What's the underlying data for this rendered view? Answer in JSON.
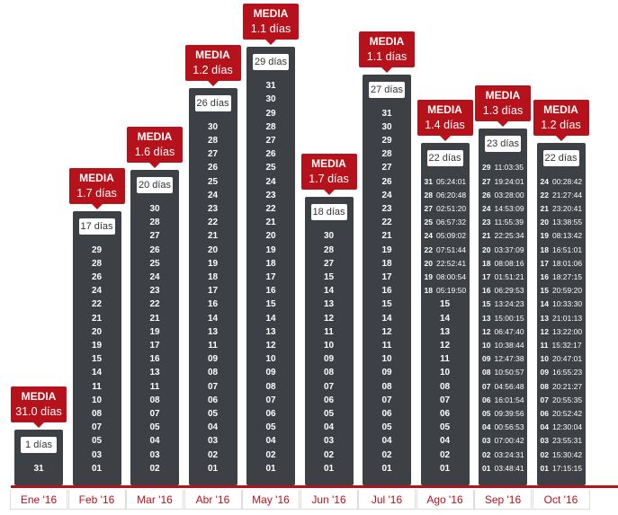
{
  "chart_data": {
    "type": "bar",
    "media_label": "MEDIA",
    "months": [
      {
        "label": "Ene '16",
        "media": "31.0 días",
        "count_label": "1 días",
        "count": 1,
        "entries": [
          {
            "day": "31"
          }
        ]
      },
      {
        "label": "Feb '16",
        "media": "1.7 días",
        "count_label": "17 días",
        "count": 17,
        "entries": [
          {
            "day": "29"
          },
          {
            "day": "28"
          },
          {
            "day": "26"
          },
          {
            "day": "24"
          },
          {
            "day": "22"
          },
          {
            "day": "21"
          },
          {
            "day": "20"
          },
          {
            "day": "19"
          },
          {
            "day": "15"
          },
          {
            "day": "14"
          },
          {
            "day": "11"
          },
          {
            "day": "10"
          },
          {
            "day": "08"
          },
          {
            "day": "07"
          },
          {
            "day": "05"
          },
          {
            "day": "03"
          },
          {
            "day": "01"
          }
        ]
      },
      {
        "label": "Mar '16",
        "media": "1.6 días",
        "count_label": "20 días",
        "count": 20,
        "entries": [
          {
            "day": "30"
          },
          {
            "day": "28"
          },
          {
            "day": "27"
          },
          {
            "day": "26"
          },
          {
            "day": "25"
          },
          {
            "day": "24"
          },
          {
            "day": "23"
          },
          {
            "day": "22"
          },
          {
            "day": "21"
          },
          {
            "day": "19"
          },
          {
            "day": "17"
          },
          {
            "day": "16"
          },
          {
            "day": "13"
          },
          {
            "day": "11"
          },
          {
            "day": "08"
          },
          {
            "day": "07"
          },
          {
            "day": "05"
          },
          {
            "day": "04"
          },
          {
            "day": "03"
          },
          {
            "day": "02"
          }
        ]
      },
      {
        "label": "Abr '16",
        "media": "1.2 días",
        "count_label": "26 días",
        "count": 26,
        "entries": [
          {
            "day": "30"
          },
          {
            "day": "28"
          },
          {
            "day": "27"
          },
          {
            "day": "26"
          },
          {
            "day": "25"
          },
          {
            "day": "24"
          },
          {
            "day": "23"
          },
          {
            "day": "22"
          },
          {
            "day": "21"
          },
          {
            "day": "20"
          },
          {
            "day": "19"
          },
          {
            "day": "18"
          },
          {
            "day": "17"
          },
          {
            "day": "16"
          },
          {
            "day": "14"
          },
          {
            "day": "13"
          },
          {
            "day": "11"
          },
          {
            "day": "09"
          },
          {
            "day": "08"
          },
          {
            "day": "07"
          },
          {
            "day": "06"
          },
          {
            "day": "05"
          },
          {
            "day": "04"
          },
          {
            "day": "03"
          },
          {
            "day": "02"
          },
          {
            "day": "01"
          }
        ]
      },
      {
        "label": "May '16",
        "media": "1.1 días",
        "count_label": "29 días",
        "count": 29,
        "entries": [
          {
            "day": "31"
          },
          {
            "day": "30"
          },
          {
            "day": "29"
          },
          {
            "day": "28"
          },
          {
            "day": "27"
          },
          {
            "day": "26"
          },
          {
            "day": "25"
          },
          {
            "day": "24"
          },
          {
            "day": "23"
          },
          {
            "day": "22"
          },
          {
            "day": "21"
          },
          {
            "day": "20"
          },
          {
            "day": "19"
          },
          {
            "day": "18"
          },
          {
            "day": "17"
          },
          {
            "day": "16"
          },
          {
            "day": "15"
          },
          {
            "day": "14"
          },
          {
            "day": "13"
          },
          {
            "day": "12"
          },
          {
            "day": "10"
          },
          {
            "day": "09"
          },
          {
            "day": "08"
          },
          {
            "day": "07"
          },
          {
            "day": "06"
          },
          {
            "day": "05"
          },
          {
            "day": "04"
          },
          {
            "day": "02"
          },
          {
            "day": "01"
          }
        ]
      },
      {
        "label": "Jun '16",
        "media": "1.7 días",
        "count_label": "18 días",
        "count": 18,
        "entries": [
          {
            "day": "30"
          },
          {
            "day": "28"
          },
          {
            "day": "27"
          },
          {
            "day": "15"
          },
          {
            "day": "14"
          },
          {
            "day": "13"
          },
          {
            "day": "12"
          },
          {
            "day": "11"
          },
          {
            "day": "10"
          },
          {
            "day": "09"
          },
          {
            "day": "08"
          },
          {
            "day": "07"
          },
          {
            "day": "06"
          },
          {
            "day": "05"
          },
          {
            "day": "04"
          },
          {
            "day": "03"
          },
          {
            "day": "02"
          },
          {
            "day": "01"
          }
        ]
      },
      {
        "label": "Jul '16",
        "media": "1.1 días",
        "count_label": "27 días",
        "count": 27,
        "entries": [
          {
            "day": "31"
          },
          {
            "day": "30"
          },
          {
            "day": "29"
          },
          {
            "day": "28"
          },
          {
            "day": "27"
          },
          {
            "day": "26"
          },
          {
            "day": "24"
          },
          {
            "day": "23"
          },
          {
            "day": "22"
          },
          {
            "day": "21"
          },
          {
            "day": "19"
          },
          {
            "day": "18"
          },
          {
            "day": "17"
          },
          {
            "day": "16"
          },
          {
            "day": "15"
          },
          {
            "day": "14"
          },
          {
            "day": "12"
          },
          {
            "day": "11"
          },
          {
            "day": "10"
          },
          {
            "day": "09"
          },
          {
            "day": "08"
          },
          {
            "day": "07"
          },
          {
            "day": "06"
          },
          {
            "day": "05"
          },
          {
            "day": "04"
          },
          {
            "day": "02"
          },
          {
            "day": "01"
          }
        ]
      },
      {
        "label": "Ago '16",
        "media": "1.4 días",
        "count_label": "22 días",
        "count": 22,
        "entries": [
          {
            "day": "31",
            "time": "05:24:01"
          },
          {
            "day": "28",
            "time": "06:20:48"
          },
          {
            "day": "27",
            "time": "02:51:20"
          },
          {
            "day": "25",
            "time": "06:57:32"
          },
          {
            "day": "24",
            "time": "05:09:02"
          },
          {
            "day": "22",
            "time": "07:51:44"
          },
          {
            "day": "20",
            "time": "22:52:41"
          },
          {
            "day": "19",
            "time": "08:00:54"
          },
          {
            "day": "18",
            "time": "05:19:50"
          },
          {
            "day": "15"
          },
          {
            "day": "14"
          },
          {
            "day": "13"
          },
          {
            "day": "12"
          },
          {
            "day": "11"
          },
          {
            "day": "10"
          },
          {
            "day": "08"
          },
          {
            "day": "07"
          },
          {
            "day": "06"
          },
          {
            "day": "05"
          },
          {
            "day": "04"
          },
          {
            "day": "02"
          },
          {
            "day": "01"
          }
        ]
      },
      {
        "label": "Sep '16",
        "media": "1.3 días",
        "count_label": "23 días",
        "count": 23,
        "entries": [
          {
            "day": "29",
            "time": "11:03:35"
          },
          {
            "day": "27",
            "time": "19:24:01"
          },
          {
            "day": "26",
            "time": "03:28:00"
          },
          {
            "day": "24",
            "time": "14:53:09"
          },
          {
            "day": "23",
            "time": "11:55:39"
          },
          {
            "day": "21",
            "time": "22:25:34"
          },
          {
            "day": "20",
            "time": "03:37:09"
          },
          {
            "day": "18",
            "time": "08:08:16"
          },
          {
            "day": "17",
            "time": "01:51:21"
          },
          {
            "day": "16",
            "time": "06:29:53"
          },
          {
            "day": "15",
            "time": "13:24:23"
          },
          {
            "day": "13",
            "time": "15:00:15"
          },
          {
            "day": "12",
            "time": "06:47:40"
          },
          {
            "day": "10",
            "time": "10:38:44"
          },
          {
            "day": "09",
            "time": "12:47:38"
          },
          {
            "day": "08",
            "time": "10:50:57"
          },
          {
            "day": "07",
            "time": "04:56:48"
          },
          {
            "day": "06",
            "time": "16:01:54"
          },
          {
            "day": "05",
            "time": "09:39:56"
          },
          {
            "day": "04",
            "time": "00:56:53"
          },
          {
            "day": "03",
            "time": "07:00:42"
          },
          {
            "day": "02",
            "time": "03:24:31"
          },
          {
            "day": "01",
            "time": "03:48:41"
          }
        ]
      },
      {
        "label": "Oct '16",
        "media": "1.2 días",
        "count_label": "22 días",
        "count": 22,
        "entries": [
          {
            "day": "24",
            "time": "00:28:42"
          },
          {
            "day": "22",
            "time": "21:27:44"
          },
          {
            "day": "21",
            "time": "23:20:41"
          },
          {
            "day": "20",
            "time": "13:38:55"
          },
          {
            "day": "19",
            "time": "08:13:42"
          },
          {
            "day": "18",
            "time": "16:51:01"
          },
          {
            "day": "17",
            "time": "18:01:06"
          },
          {
            "day": "16",
            "time": "18:27:15"
          },
          {
            "day": "15",
            "time": "20:59:20"
          },
          {
            "day": "14",
            "time": "10:33:30"
          },
          {
            "day": "13",
            "time": "21:01:13"
          },
          {
            "day": "12",
            "time": "13:22:00"
          },
          {
            "day": "11",
            "time": "15:32:17"
          },
          {
            "day": "10",
            "time": "20:47:01"
          },
          {
            "day": "09",
            "time": "16:55:23"
          },
          {
            "day": "08",
            "time": "20:21:27"
          },
          {
            "day": "07",
            "time": "20:55:35"
          },
          {
            "day": "06",
            "time": "20:52:42"
          },
          {
            "day": "04",
            "time": "12:30:04"
          },
          {
            "day": "03",
            "time": "23:55:31"
          },
          {
            "day": "02",
            "time": "15:30:42"
          },
          {
            "day": "01",
            "time": "17:15:15"
          }
        ]
      }
    ]
  }
}
